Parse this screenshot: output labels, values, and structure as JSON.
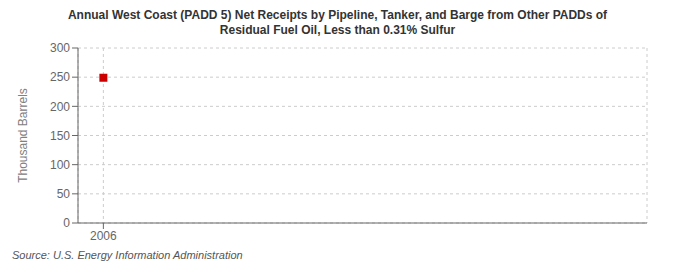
{
  "chart_data": {
    "type": "scatter",
    "title": "Annual West Coast (PADD 5) Net Receipts by Pipeline, Tanker, and Barge from Other PADDs of\nResidual Fuel Oil, Less than 0.31% Sulfur",
    "ylabel": "Thousand Barrels",
    "annotations": [
      "Source: U.S. Energy Information Administration"
    ],
    "x": [
      2006
    ],
    "values": [
      249
    ],
    "color": "#cc0000",
    "marker": "square",
    "xlim": [
      2005.3,
      2021
    ],
    "xticks": [
      2006
    ],
    "ylim": [
      0,
      300
    ],
    "yticks": [
      0,
      50,
      100,
      150,
      200,
      250,
      300
    ],
    "grid": true
  }
}
